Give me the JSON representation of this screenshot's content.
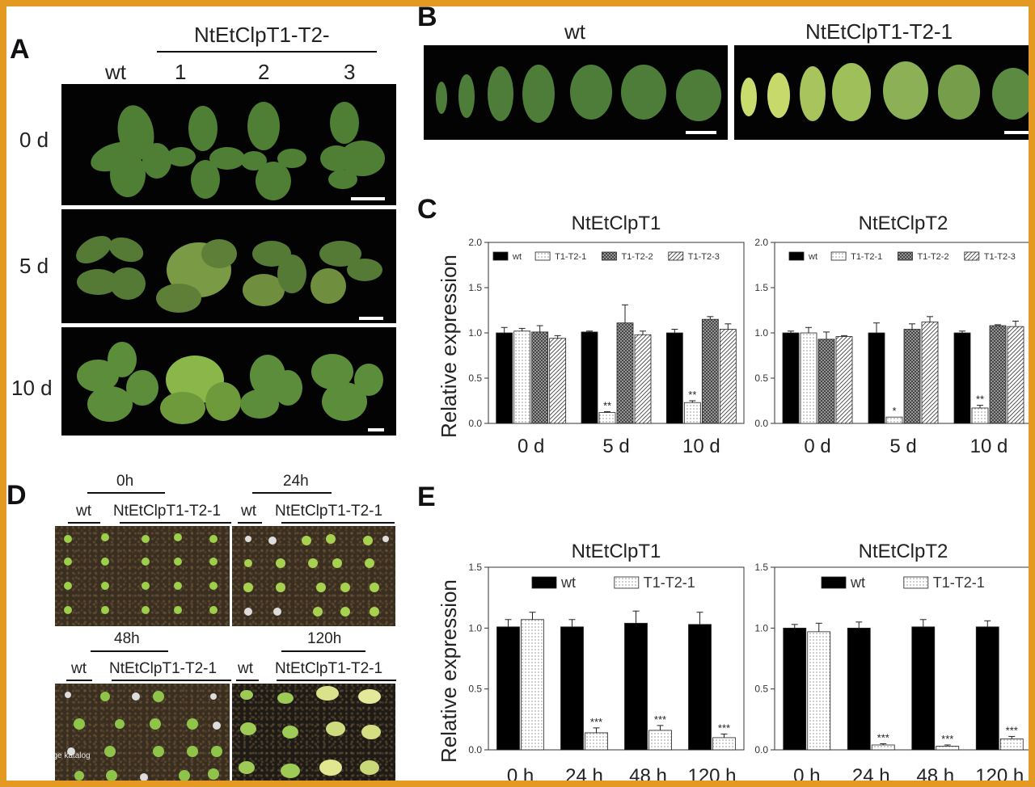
{
  "panels": {
    "A": {
      "letter": "A",
      "group_label": "NtEtClpT1-T2-",
      "columns": [
        "wt",
        "1",
        "2",
        "3"
      ],
      "rows": [
        "0 d",
        "5 d",
        "10 d"
      ]
    },
    "B": {
      "letter": "B",
      "labels": [
        "wt",
        "NtEtClpT1-T2-1"
      ]
    },
    "D": {
      "letter": "D",
      "times": [
        "0h",
        "24h",
        "48h",
        "120h"
      ],
      "wt": "wt",
      "line": "NtEtClpT1-T2-1"
    },
    "watermark": "verage katalog"
  },
  "chart_data": [
    {
      "panel": "C",
      "letter": "C",
      "type": "bar",
      "title": "NtEtClpT1",
      "ylabel": "Relative expression",
      "ylim": [
        0,
        2.0
      ],
      "yticks": [
        "0.0",
        "0.5",
        "1.0",
        "1.5",
        "2.0"
      ],
      "categories": [
        "0 d",
        "5 d",
        "10 d"
      ],
      "legend_position": "top",
      "series": [
        {
          "name": "wt",
          "pattern": "solid",
          "values": [
            1.0,
            1.01,
            1.0
          ],
          "errors": [
            0.06,
            0.01,
            0.04
          ]
        },
        {
          "name": "T1-T2-1",
          "pattern": "dots",
          "values": [
            1.02,
            0.12,
            0.23
          ],
          "errors": [
            0.03,
            0.01,
            0.02
          ],
          "annotations": [
            "",
            "**",
            "**"
          ]
        },
        {
          "name": "T1-T2-2",
          "pattern": "cross",
          "values": [
            1.01,
            1.11,
            1.15
          ],
          "errors": [
            0.07,
            0.2,
            0.03
          ]
        },
        {
          "name": "T1-T2-3",
          "pattern": "diag",
          "values": [
            0.94,
            0.98,
            1.04
          ],
          "errors": [
            0.03,
            0.04,
            0.06
          ]
        }
      ]
    },
    {
      "panel": "C",
      "type": "bar",
      "title": "NtEtClpT2",
      "ylim": [
        0,
        2.0
      ],
      "yticks": [
        "0.0",
        "0.5",
        "1.0",
        "1.5",
        "2.0"
      ],
      "categories": [
        "0 d",
        "5 d",
        "10 d"
      ],
      "legend_position": "top",
      "series": [
        {
          "name": "wt",
          "pattern": "solid",
          "values": [
            1.0,
            1.0,
            1.0
          ],
          "errors": [
            0.02,
            0.11,
            0.02
          ]
        },
        {
          "name": "T1-T2-1",
          "pattern": "dots",
          "values": [
            1.0,
            0.07,
            0.17
          ],
          "errors": [
            0.06,
            0.0,
            0.03
          ],
          "annotations": [
            "",
            "*",
            "**"
          ]
        },
        {
          "name": "T1-T2-2",
          "pattern": "cross",
          "values": [
            0.93,
            1.04,
            1.08
          ],
          "errors": [
            0.08,
            0.06,
            0.01
          ]
        },
        {
          "name": "T1-T2-3",
          "pattern": "diag",
          "values": [
            0.96,
            1.12,
            1.07
          ],
          "errors": [
            0.01,
            0.06,
            0.06
          ]
        }
      ]
    },
    {
      "panel": "E",
      "letter": "E",
      "type": "bar",
      "title": "NtEtClpT1",
      "ylabel": "Relative expression",
      "ylim": [
        0,
        1.5
      ],
      "yticks": [
        "0.0",
        "0.5",
        "1.0",
        "1.5"
      ],
      "categories": [
        "0 h",
        "24 h",
        "48 h",
        "120 h"
      ],
      "legend_position": "top",
      "series": [
        {
          "name": "wt",
          "pattern": "solid",
          "values": [
            1.01,
            1.01,
            1.04,
            1.03
          ],
          "errors": [
            0.06,
            0.06,
            0.1,
            0.1
          ]
        },
        {
          "name": "T1-T2-1",
          "pattern": "dots",
          "values": [
            1.07,
            0.14,
            0.16,
            0.1
          ],
          "errors": [
            0.06,
            0.04,
            0.04,
            0.03
          ],
          "annotations": [
            "",
            "***",
            "***",
            "***"
          ]
        }
      ]
    },
    {
      "panel": "E",
      "type": "bar",
      "title": "NtEtClpT2",
      "ylim": [
        0,
        1.5
      ],
      "yticks": [
        "0.0",
        "0.5",
        "1.0",
        "1.5"
      ],
      "categories": [
        "0 h",
        "24 h",
        "48 h",
        "120 h"
      ],
      "legend_position": "top",
      "series": [
        {
          "name": "wt",
          "pattern": "solid",
          "values": [
            1.0,
            1.0,
            1.01,
            1.01
          ],
          "errors": [
            0.03,
            0.05,
            0.06,
            0.05
          ]
        },
        {
          "name": "T1-T2-1",
          "pattern": "dots",
          "values": [
            0.97,
            0.04,
            0.03,
            0.09
          ],
          "errors": [
            0.07,
            0.01,
            0.01,
            0.02
          ],
          "annotations": [
            "",
            "***",
            "***",
            "***"
          ]
        }
      ]
    }
  ]
}
